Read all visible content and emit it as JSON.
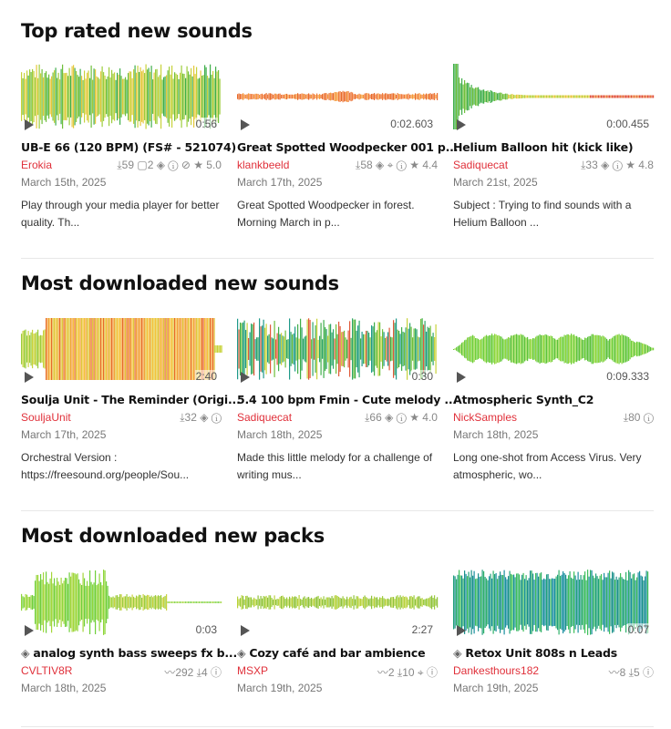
{
  "sections": [
    {
      "title": "Top rated new sounds",
      "cards": [
        {
          "duration": "0:56",
          "name": "UB-E 66 (120 BPM) (FS# - 521074)",
          "author": "Erokia",
          "stats": "⤓59 ▢2 ◈ ⓘ ⊘ ★ 5.0",
          "date": "March 15th, 2025",
          "description": "Play through your media player for better quality. Th..."
        },
        {
          "duration": "0:02.603",
          "name": "Great Spotted Woodpecker 001 p...",
          "author": "klankbeeld",
          "stats": "⤓58 ◈ ⌖ ⓘ ★ 4.4",
          "date": "March 17th, 2025",
          "description": "Great Spotted Woodpecker in forest. Morning March in p..."
        },
        {
          "duration": "0:00.455",
          "name": "Helium Balloon hit (kick like)",
          "author": "Sadiquecat",
          "stats": "⤓33 ◈ ⓘ ★ 4.8",
          "date": "March 21st, 2025",
          "description": "Subject : Trying to find sounds with a Helium Balloon ..."
        }
      ]
    },
    {
      "title": "Most downloaded new sounds",
      "cards": [
        {
          "duration": "2:40",
          "name": "Soulja Unit - The Reminder (Origi...",
          "author": "SouljaUnit",
          "stats": "⤓32 ◈ ⓘ",
          "date": "March 17th, 2025",
          "description": "Orchestral Version : https://freesound.org/people/Sou..."
        },
        {
          "duration": "0:30",
          "name": "5.4 100 bpm Fmin - Cute melody ...",
          "author": "Sadiquecat",
          "stats": "⤓66 ◈ ⓘ ★ 4.0",
          "date": "March 18th, 2025",
          "description": "Made this little melody for a challenge of writing mus..."
        },
        {
          "duration": "0:09.333",
          "name": "Atmospheric Synth_C2",
          "author": "NickSamples",
          "stats": "⤓80 ⓘ",
          "date": "March 18th, 2025",
          "description": "Long one-shot from Access Virus. Very atmospheric, wo..."
        }
      ]
    },
    {
      "title": "Most downloaded new packs",
      "cards": [
        {
          "duration": "0:03",
          "pack_icon": "◈",
          "name": "analog synth bass sweeps fx b...",
          "author": "CVLTIV8R",
          "stats": "〰292 ⤓4 ⓘ",
          "date": "March 18th, 2025",
          "description": ""
        },
        {
          "duration": "2:27",
          "pack_icon": "◈",
          "name": "Cozy café and bar ambience",
          "author": "MSXP",
          "stats": "〰2 ⤓10 ⌖ ⓘ",
          "date": "March 19th, 2025",
          "description": ""
        },
        {
          "duration": "0:07",
          "pack_icon": "◈",
          "name": "Retox Unit 808s n Leads",
          "author": "Dankesthours182",
          "stats": "〰8 ⤓5 ⓘ",
          "date": "March 19th, 2025",
          "description": ""
        }
      ]
    }
  ]
}
